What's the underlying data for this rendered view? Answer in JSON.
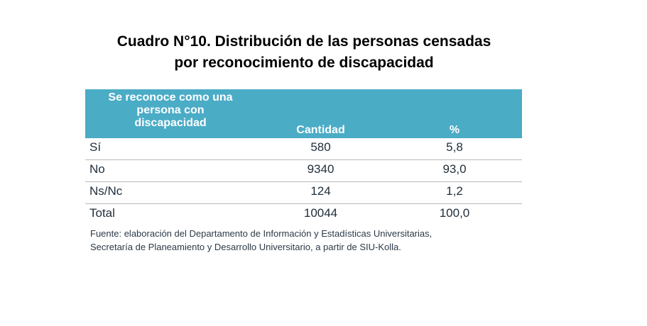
{
  "title": {
    "line1": "Cuadro N°10. Distribución de las personas censadas",
    "line2": "por reconocimiento de discapacidad"
  },
  "table": {
    "headers": {
      "col1_lines": [
        "Se reconoce como una",
        "persona con",
        "discapacidad"
      ],
      "col2": "Cantidad",
      "col3": "%"
    },
    "rows": [
      {
        "label": "Sí",
        "cantidad": "580",
        "pct": "5,8"
      },
      {
        "label": "No",
        "cantidad": "9340",
        "pct": "93,0"
      },
      {
        "label": "Ns/Nc",
        "cantidad": "124",
        "pct": "1,2"
      },
      {
        "label": "Total",
        "cantidad": "10044",
        "pct": "100,0"
      }
    ],
    "header_color": "#4bacc6"
  },
  "source": {
    "line1": "Fuente: elaboración del Departamento de Información y Estadísticas Universitarias,",
    "line2": "Secretaría de Planeamiento y Desarrollo Universitario, a partir de  SIU-Kolla."
  }
}
